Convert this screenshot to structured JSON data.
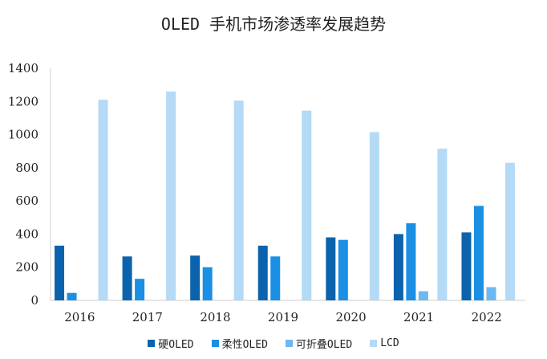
{
  "chart_data": {
    "type": "bar",
    "title": "OLED 手机市场渗透率发展趋势",
    "xlabel": "",
    "ylabel": "",
    "categories": [
      "2016",
      "2017",
      "2018",
      "2019",
      "2020",
      "2021",
      "2022"
    ],
    "ylim": [
      0,
      1400
    ],
    "yticks": [
      0,
      200,
      400,
      600,
      800,
      1000,
      1200,
      1400
    ],
    "grid": false,
    "legend_position": "bottom",
    "series": [
      {
        "name": "硬OLED",
        "color": "#0b63ad",
        "values": [
          330,
          265,
          270,
          330,
          380,
          400,
          410
        ]
      },
      {
        "name": "柔性OLED",
        "color": "#1a8fe3",
        "values": [
          45,
          130,
          200,
          265,
          365,
          465,
          570
        ]
      },
      {
        "name": "可折叠OLED",
        "color": "#6db8ef",
        "values": [
          0,
          0,
          0,
          0,
          0,
          55,
          80
        ]
      },
      {
        "name": "LCD",
        "color": "#b4daf6",
        "values": [
          1210,
          1260,
          1205,
          1145,
          1015,
          915,
          830
        ]
      }
    ]
  }
}
